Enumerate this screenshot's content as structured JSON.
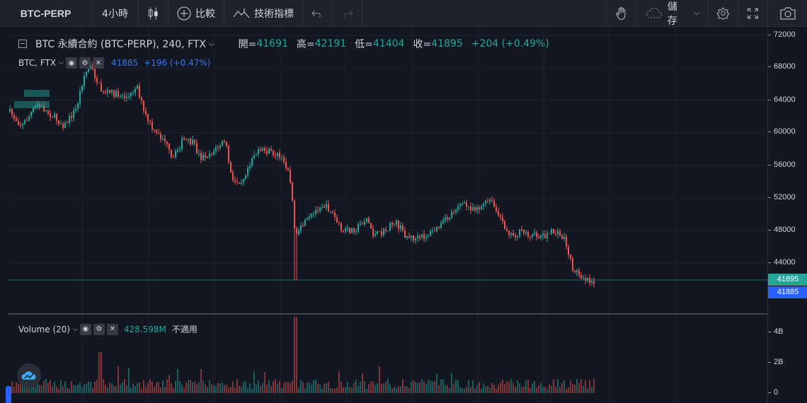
{
  "toolbar": {
    "symbol": "BTC-PERP",
    "interval": "4小時",
    "compare_label": "比較",
    "indicators_label": "技術指標",
    "save_label": "儲存"
  },
  "legend": {
    "main_title": "BTC 永續合約 (BTC-PERP), 240, FTX",
    "open_label": "開=",
    "open": "41691",
    "high_label": "高=",
    "high": "42191",
    "low_label": "低=",
    "low": "41404",
    "close_label": "收=",
    "close": "41895",
    "change": "+204 (+0.49%)",
    "compare_symbol": "BTC, FTX",
    "compare_value": "41885",
    "compare_change": "+196 (+0.47%)",
    "volume_title": "Volume (20)",
    "volume_value": "428.598M",
    "volume_na": "不適用"
  },
  "price_axis": {
    "ticks": [
      "72000",
      "68000",
      "64000",
      "60000",
      "56000",
      "52000",
      "48000",
      "44000"
    ],
    "last_price": "41895",
    "compare_price": "41885"
  },
  "volume_axis": {
    "ticks": [
      "4B",
      "2B",
      "0"
    ]
  },
  "colors": {
    "up": "#26a69a",
    "down": "#ef5350",
    "background": "#131722",
    "compare": "#2962ff"
  }
}
